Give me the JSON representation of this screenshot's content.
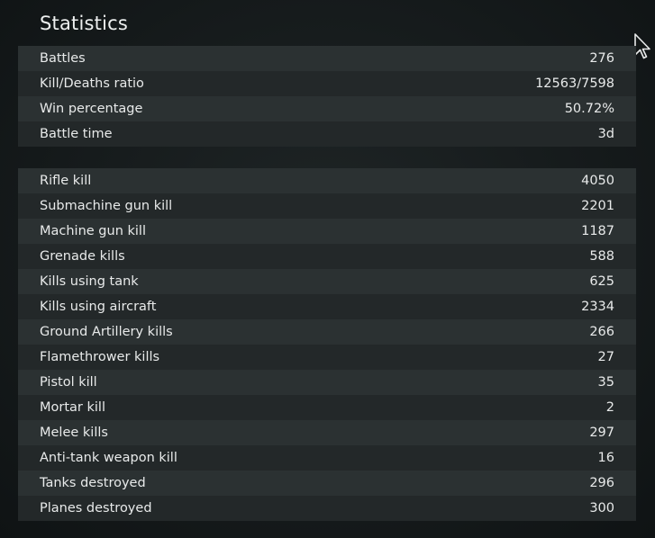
{
  "header": {
    "title": "Statistics"
  },
  "general_stats": [
    {
      "label": "Battles",
      "value": "276"
    },
    {
      "label": "Kill/Deaths ratio",
      "value": "12563/7598"
    },
    {
      "label": "Win percentage",
      "value": "50.72%"
    },
    {
      "label": "Battle time",
      "value": "3d"
    }
  ],
  "kill_stats": [
    {
      "label": "Rifle kill",
      "value": "4050"
    },
    {
      "label": "Submachine gun kill",
      "value": "2201"
    },
    {
      "label": "Machine gun kill",
      "value": "1187"
    },
    {
      "label": "Grenade kills",
      "value": "588"
    },
    {
      "label": "Kills using tank",
      "value": "625"
    },
    {
      "label": "Kills using aircraft",
      "value": "2334"
    },
    {
      "label": "Ground Artillery kills",
      "value": "266"
    },
    {
      "label": "Flamethrower kills",
      "value": "27"
    },
    {
      "label": "Pistol kill",
      "value": "35"
    },
    {
      "label": "Mortar kill",
      "value": "2"
    },
    {
      "label": "Melee kills",
      "value": "297"
    },
    {
      "label": "Anti-tank weapon kill",
      "value": "16"
    },
    {
      "label": "Tanks destroyed",
      "value": "296"
    },
    {
      "label": "Planes destroyed",
      "value": "300"
    }
  ],
  "icons": {
    "cursor": "mouse-pointer-icon"
  }
}
